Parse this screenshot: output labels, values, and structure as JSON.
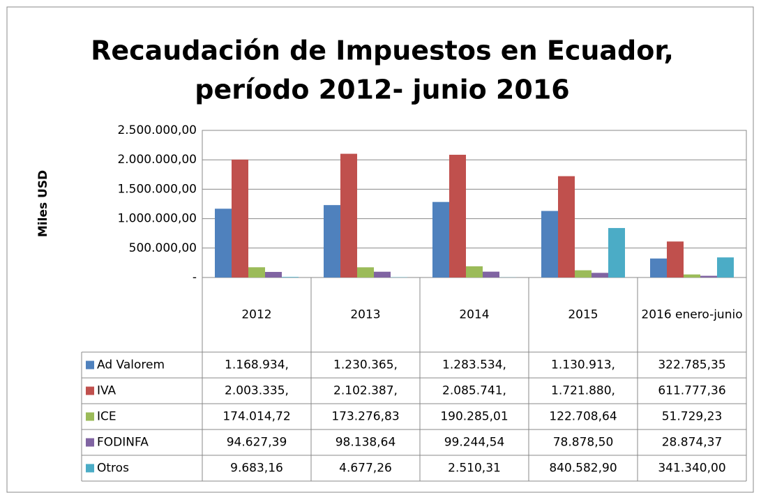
{
  "chart_data": {
    "type": "bar",
    "title": "Recaudación de Impuestos en Ecuador,",
    "subtitle": "período 2012- junio 2016",
    "y_label": "Miles USD",
    "categories": [
      "2012",
      "2013",
      "2014",
      "2015",
      "2016 enero-junio"
    ],
    "ylim": [
      0,
      2500000
    ],
    "yticks": [
      {
        "value": 0,
        "label": "-"
      },
      {
        "value": 500000,
        "label": "500.000,00"
      },
      {
        "value": 1000000,
        "label": "1.000.000,00"
      },
      {
        "value": 1500000,
        "label": "1.500.000,00"
      },
      {
        "value": 2000000,
        "label": "2.000.000,00"
      },
      {
        "value": 2500000,
        "label": "2.500.000,00"
      }
    ],
    "grid": true,
    "series": [
      {
        "name": "Ad Valorem",
        "color": "#4f81bd",
        "values": [
          1168934,
          1230365,
          1283534,
          1130913,
          322785.35
        ],
        "value_labels": [
          "1.168.934,",
          "1.230.365,",
          "1.283.534,",
          "1.130.913,",
          "322.785,35"
        ]
      },
      {
        "name": "IVA",
        "color": "#c0504d",
        "values": [
          2003335,
          2102387,
          2085741,
          1721880,
          611777.36
        ],
        "value_labels": [
          "2.003.335,",
          "2.102.387,",
          "2.085.741,",
          "1.721.880,",
          "611.777,36"
        ]
      },
      {
        "name": "ICE",
        "color": "#9bbb59",
        "values": [
          174014.72,
          173276.83,
          190285.01,
          122708.64,
          51729.23
        ],
        "value_labels": [
          "174.014,72",
          "173.276,83",
          "190.285,01",
          "122.708,64",
          "51.729,23"
        ]
      },
      {
        "name": "FODINFA",
        "color": "#8064a2",
        "values": [
          94627.39,
          98138.64,
          99244.54,
          78878.5,
          28874.37
        ],
        "value_labels": [
          "94.627,39",
          "98.138,64",
          "99.244,54",
          "78.878,50",
          "28.874,37"
        ]
      },
      {
        "name": "Otros",
        "color": "#4bacc6",
        "values": [
          9683.16,
          4677.26,
          2510.31,
          840582.9,
          341340
        ],
        "value_labels": [
          "9.683,16",
          "4.677,26",
          "2.510,31",
          "840.582,90",
          "341.340,00"
        ]
      }
    ]
  }
}
